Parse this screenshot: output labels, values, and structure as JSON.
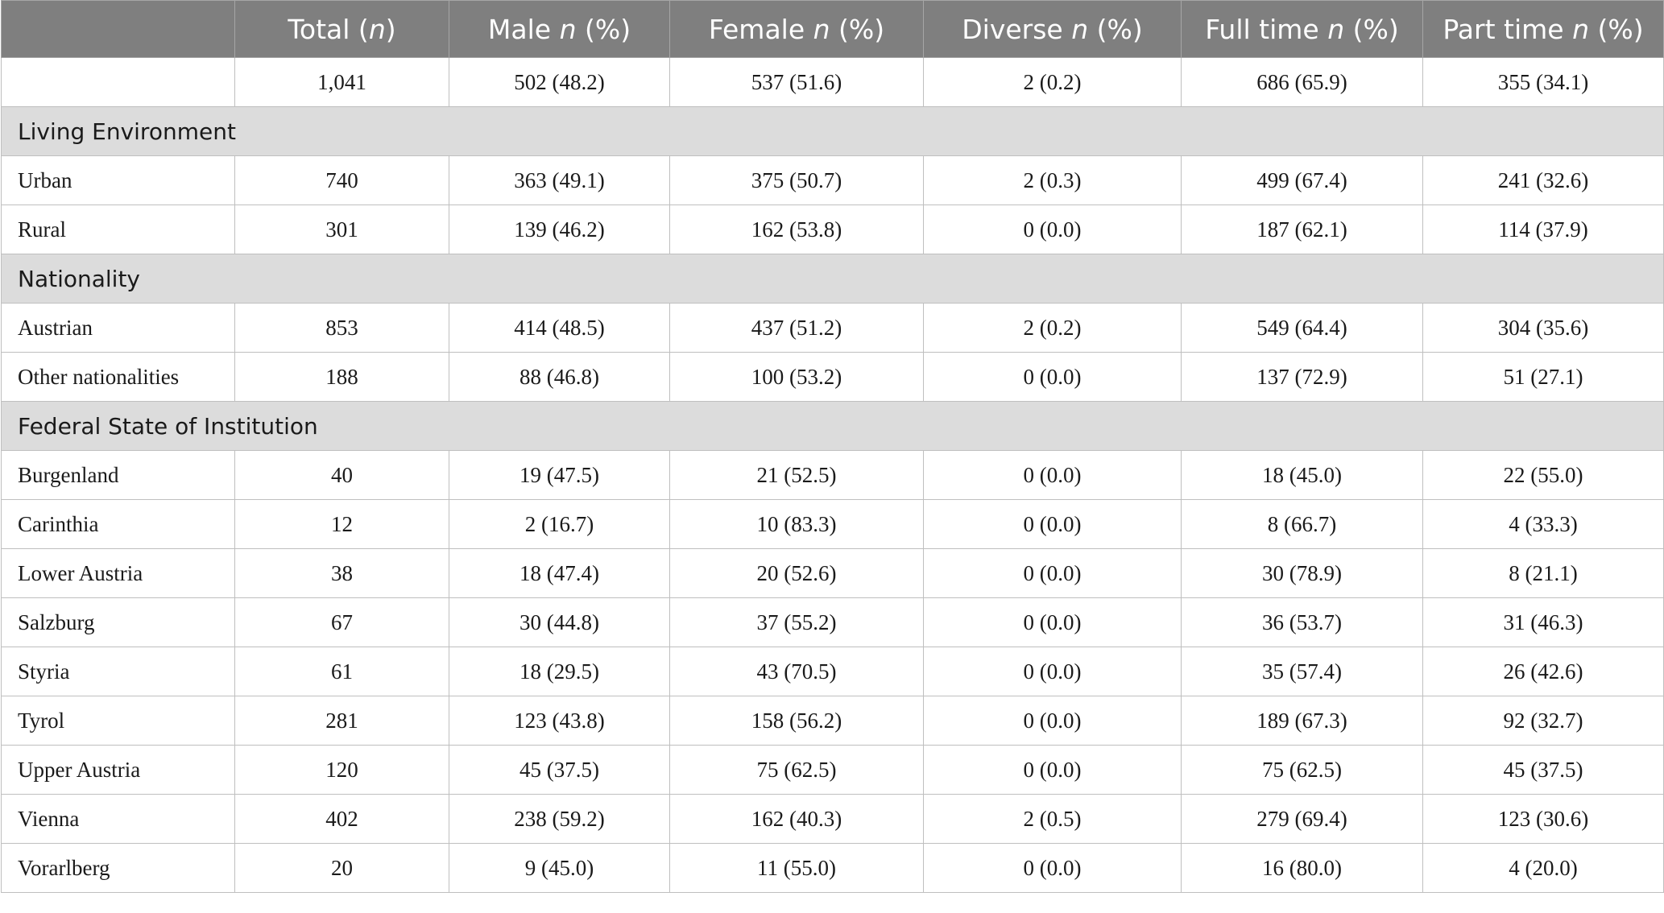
{
  "table": {
    "headers": [
      {
        "pre": "",
        "it": "",
        "post": ""
      },
      {
        "pre": "Total (",
        "it": "n",
        "post": ")"
      },
      {
        "pre": "Male ",
        "it": "n",
        "post": " (%)"
      },
      {
        "pre": "Female ",
        "it": "n",
        "post": " (%)"
      },
      {
        "pre": "Diverse ",
        "it": "n",
        "post": " (%)"
      },
      {
        "pre": "Full time ",
        "it": "n",
        "post": " (%)"
      },
      {
        "pre": "Part time ",
        "it": "n",
        "post": " (%)"
      }
    ],
    "rows": [
      {
        "type": "data",
        "cells": [
          "",
          "1,041",
          "502 (48.2)",
          "537 (51.6)",
          "2 (0.2)",
          "686 (65.9)",
          "355 (34.1)"
        ]
      },
      {
        "type": "section",
        "label": "Living Environment"
      },
      {
        "type": "data",
        "cells": [
          "Urban",
          "740",
          "363 (49.1)",
          "375 (50.7)",
          "2 (0.3)",
          "499 (67.4)",
          "241 (32.6)"
        ]
      },
      {
        "type": "data",
        "cells": [
          "Rural",
          "301",
          "139 (46.2)",
          "162 (53.8)",
          "0 (0.0)",
          "187 (62.1)",
          "114 (37.9)"
        ]
      },
      {
        "type": "section",
        "label": "Nationality"
      },
      {
        "type": "data",
        "cells": [
          "Austrian",
          "853",
          "414 (48.5)",
          "437 (51.2)",
          "2 (0.2)",
          "549 (64.4)",
          "304 (35.6)"
        ]
      },
      {
        "type": "data",
        "cells": [
          "Other nationalities",
          "188",
          "88 (46.8)",
          "100 (53.2)",
          "0 (0.0)",
          "137 (72.9)",
          "51 (27.1)"
        ]
      },
      {
        "type": "section",
        "label": "Federal State of Institution"
      },
      {
        "type": "data",
        "cells": [
          "Burgenland",
          "40",
          "19 (47.5)",
          "21 (52.5)",
          "0 (0.0)",
          "18 (45.0)",
          "22 (55.0)"
        ]
      },
      {
        "type": "data",
        "cells": [
          "Carinthia",
          "12",
          "2 (16.7)",
          "10 (83.3)",
          "0 (0.0)",
          "8 (66.7)",
          "4 (33.3)"
        ]
      },
      {
        "type": "data",
        "cells": [
          "Lower Austria",
          "38",
          "18 (47.4)",
          "20 (52.6)",
          "0 (0.0)",
          "30 (78.9)",
          "8 (21.1)"
        ]
      },
      {
        "type": "data",
        "cells": [
          "Salzburg",
          "67",
          "30 (44.8)",
          "37 (55.2)",
          "0 (0.0)",
          "36 (53.7)",
          "31 (46.3)"
        ]
      },
      {
        "type": "data",
        "cells": [
          "Styria",
          "61",
          "18 (29.5)",
          "43 (70.5)",
          "0 (0.0)",
          "35 (57.4)",
          "26 (42.6)"
        ]
      },
      {
        "type": "data",
        "cells": [
          "Tyrol",
          "281",
          "123 (43.8)",
          "158 (56.2)",
          "0 (0.0)",
          "189 (67.3)",
          "92 (32.7)"
        ]
      },
      {
        "type": "data",
        "cells": [
          "Upper Austria",
          "120",
          "45 (37.5)",
          "75 (62.5)",
          "0 (0.0)",
          "75 (62.5)",
          "45 (37.5)"
        ]
      },
      {
        "type": "data",
        "cells": [
          "Vienna",
          "402",
          "238 (59.2)",
          "162 (40.3)",
          "2 (0.5)",
          "279 (69.4)",
          "123 (30.6)"
        ]
      },
      {
        "type": "data",
        "cells": [
          "Vorarlberg",
          "20",
          "9 (45.0)",
          "11 (55.0)",
          "0 (0.0)",
          "16 (80.0)",
          "4 (20.0)"
        ]
      }
    ]
  },
  "colors": {
    "header_bg": "#7f7f7f",
    "header_text": "#ffffff",
    "section_bg": "#dcdcdc",
    "border": "#bfbfbf"
  }
}
